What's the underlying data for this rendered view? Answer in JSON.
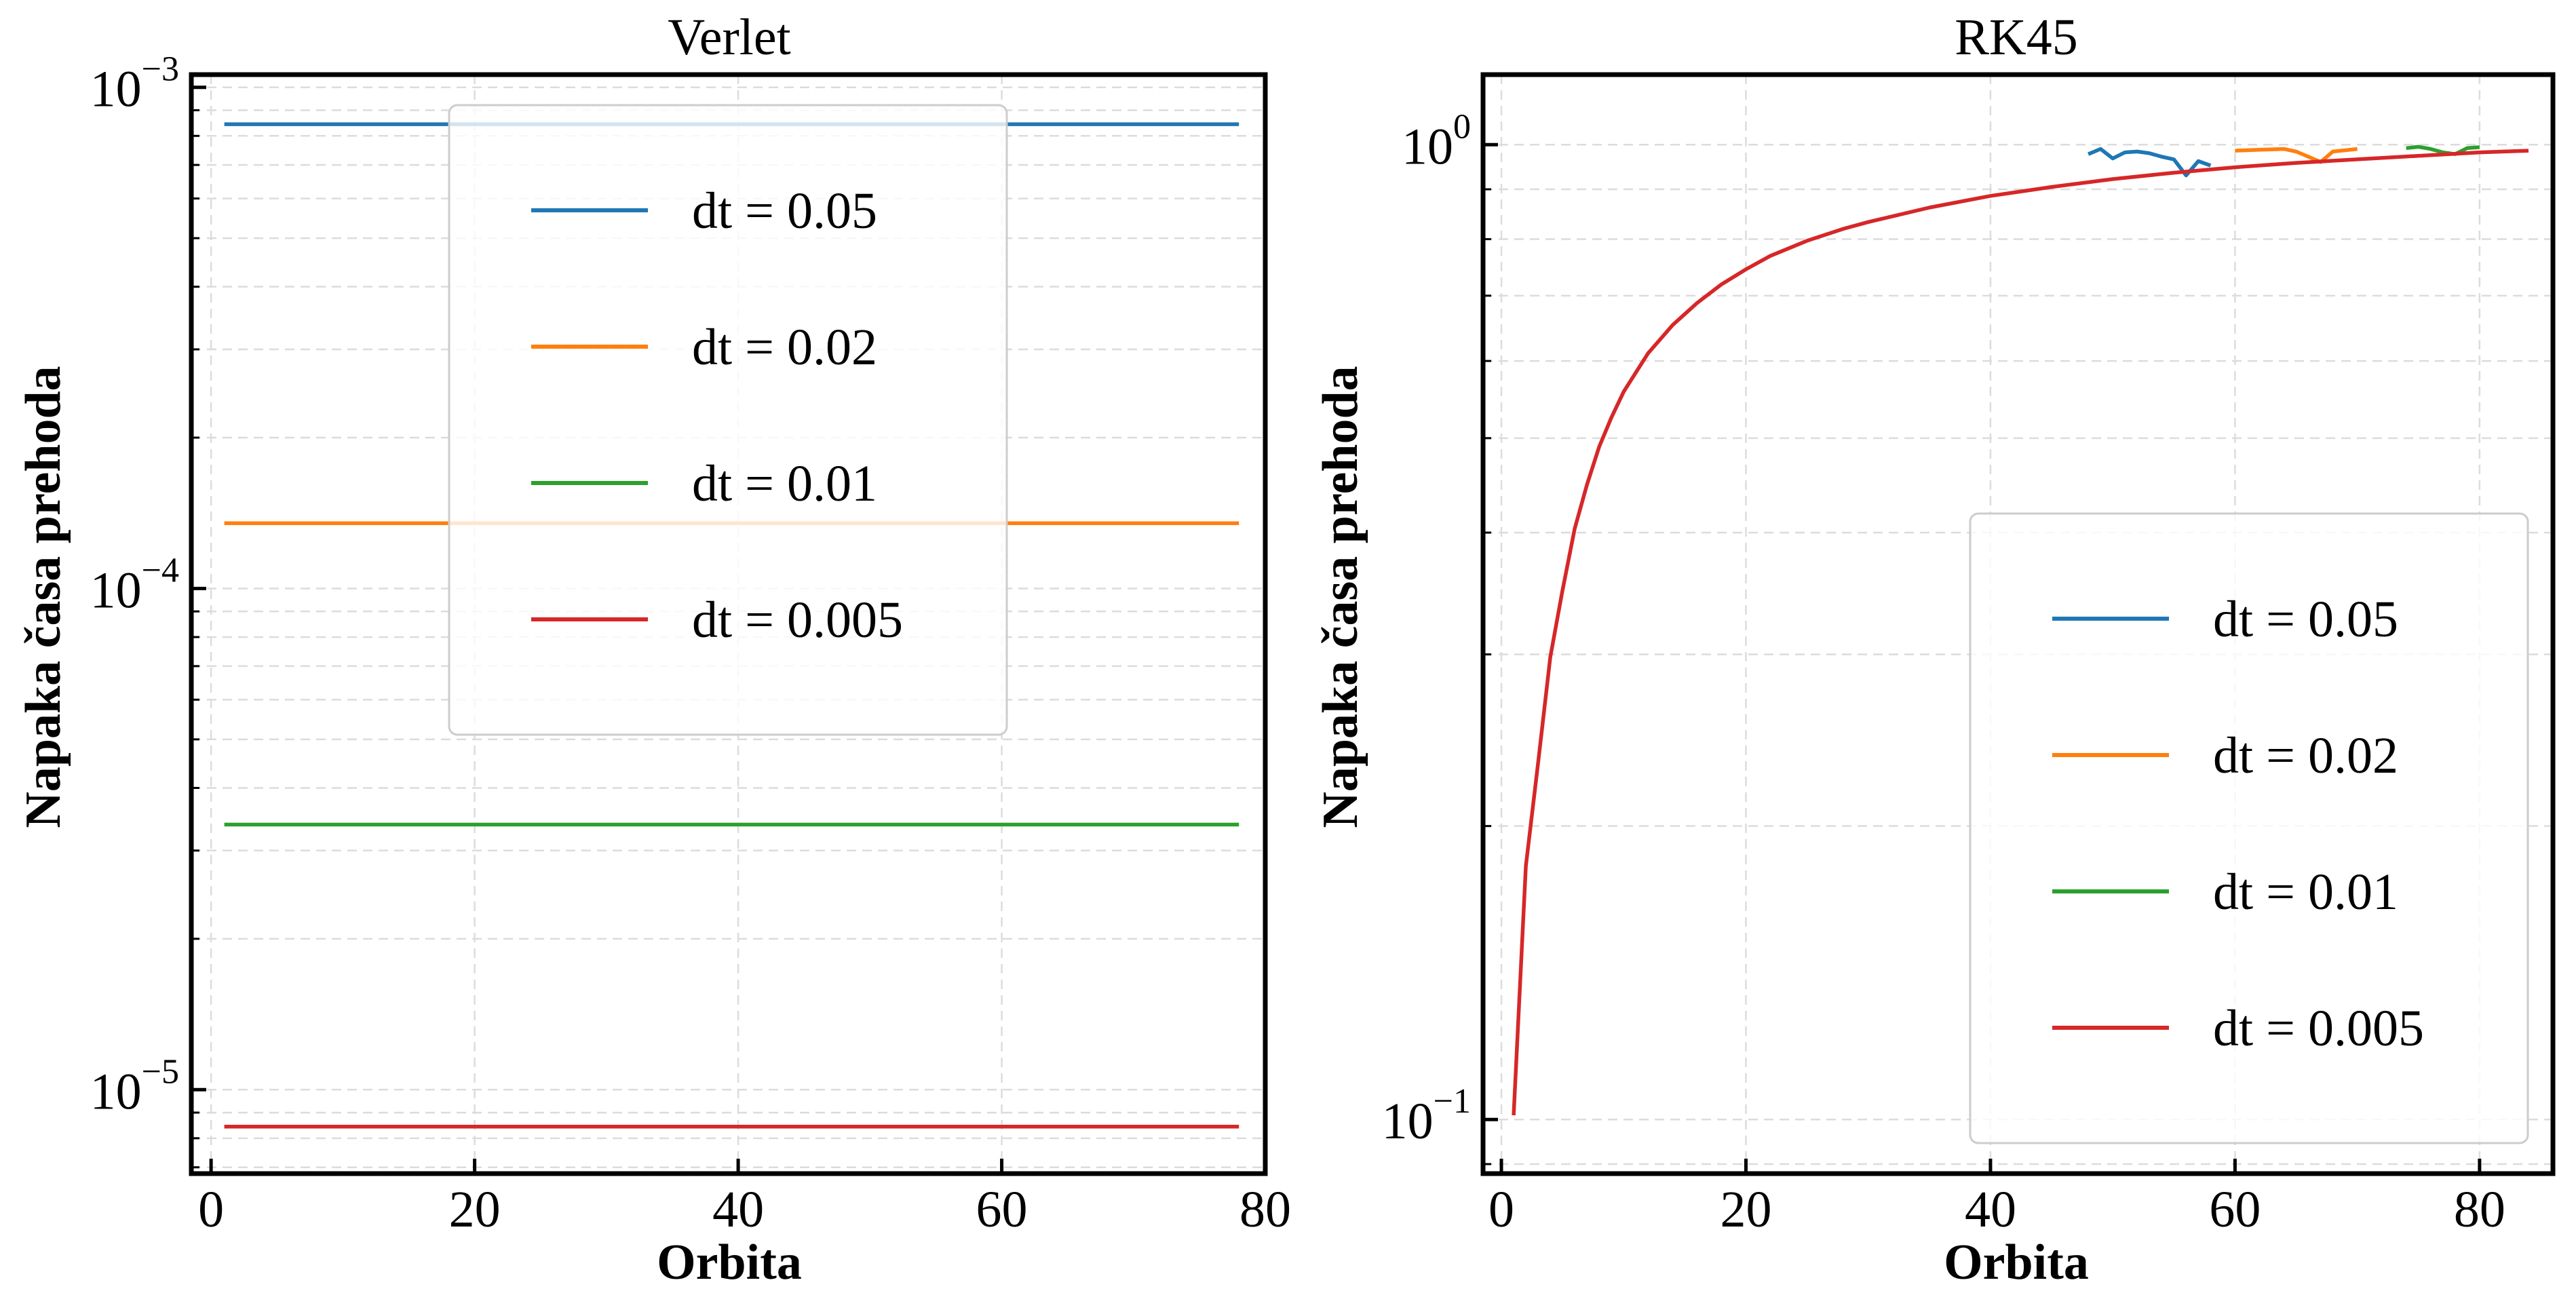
{
  "chart_data": [
    {
      "type": "line",
      "title": "Verlet",
      "xlabel": "Orbita",
      "ylabel": "Napaka časa prehoda",
      "yscale": "log",
      "xlim": [
        -1.5,
        80
      ],
      "ylim": [
        6.8e-06,
        0.00106
      ],
      "xticks": [
        0,
        20,
        40,
        60,
        80
      ],
      "xtick_labels": [
        "0",
        "20",
        "40",
        "60",
        "80"
      ],
      "yticks": [
        1e-05,
        0.0001,
        0.001
      ],
      "ytick_labels": [
        {
          "base": "10",
          "exp": "−5"
        },
        {
          "base": "10",
          "exp": "−4"
        },
        {
          "base": "10",
          "exp": "−3"
        }
      ],
      "grid": true,
      "legend_position": "upper-center",
      "series": [
        {
          "name": "dt = 0.05",
          "color": "#1f77b4",
          "x": [
            1,
            78
          ],
          "y": [
            0.000844,
            0.000844
          ]
        },
        {
          "name": "dt = 0.02",
          "color": "#ff7f0e",
          "x": [
            1,
            78
          ],
          "y": [
            0.000135,
            0.000135
          ]
        },
        {
          "name": "dt = 0.01",
          "color": "#2ca02c",
          "x": [
            1,
            78
          ],
          "y": [
            3.38e-05,
            3.38e-05
          ]
        },
        {
          "name": "dt = 0.005",
          "color": "#d62728",
          "x": [
            1,
            78
          ],
          "y": [
            8.44e-06,
            8.44e-06
          ]
        }
      ]
    },
    {
      "type": "line",
      "title": "RK45",
      "xlabel": "Orbita",
      "ylabel": "Napaka časa prehoda",
      "yscale": "log",
      "xlim": [
        -1.5,
        86
      ],
      "ylim": [
        0.088,
        1.18
      ],
      "xticks": [
        0,
        20,
        40,
        60,
        80
      ],
      "xtick_labels": [
        "0",
        "20",
        "40",
        "60",
        "80"
      ],
      "yticks": [
        0.1,
        1
      ],
      "ytick_labels": [
        {
          "base": "10",
          "exp": "−1"
        },
        {
          "base": "10",
          "exp": "0"
        }
      ],
      "grid": true,
      "legend_position": "lower-right",
      "series": [
        {
          "name": "dt = 0.05",
          "color": "#1f77b4",
          "x": [
            48,
            49,
            50,
            51,
            52,
            53,
            54,
            55,
            56,
            57,
            58
          ],
          "y": [
            0.978,
            0.99,
            0.968,
            0.982,
            0.984,
            0.98,
            0.972,
            0.966,
            0.93,
            0.962,
            0.952
          ]
        },
        {
          "name": "dt = 0.02",
          "color": "#ff7f0e",
          "x": [
            60,
            62,
            64,
            65,
            66,
            67,
            68,
            70
          ],
          "y": [
            0.986,
            0.988,
            0.99,
            0.984,
            0.972,
            0.96,
            0.984,
            0.99
          ]
        },
        {
          "name": "dt = 0.01",
          "color": "#2ca02c",
          "x": [
            74,
            75,
            76,
            77,
            78,
            79,
            80
          ],
          "y": [
            0.992,
            0.995,
            0.99,
            0.982,
            0.978,
            0.992,
            0.994
          ]
        },
        {
          "name": "dt = 0.005",
          "color": "#d62728",
          "x": [
            1,
            2,
            3,
            4,
            5,
            6,
            7,
            8,
            9,
            10,
            12,
            14,
            16,
            18,
            20,
            22,
            25,
            28,
            30,
            35,
            40,
            45,
            50,
            55,
            60,
            65,
            70,
            75,
            80,
            84
          ],
          "y": [
            0.101,
            0.182,
            0.232,
            0.298,
            0.349,
            0.404,
            0.448,
            0.49,
            0.525,
            0.558,
            0.611,
            0.653,
            0.688,
            0.719,
            0.745,
            0.769,
            0.797,
            0.82,
            0.833,
            0.862,
            0.886,
            0.905,
            0.922,
            0.936,
            0.948,
            0.958,
            0.966,
            0.974,
            0.982,
            0.986
          ]
        }
      ]
    }
  ]
}
